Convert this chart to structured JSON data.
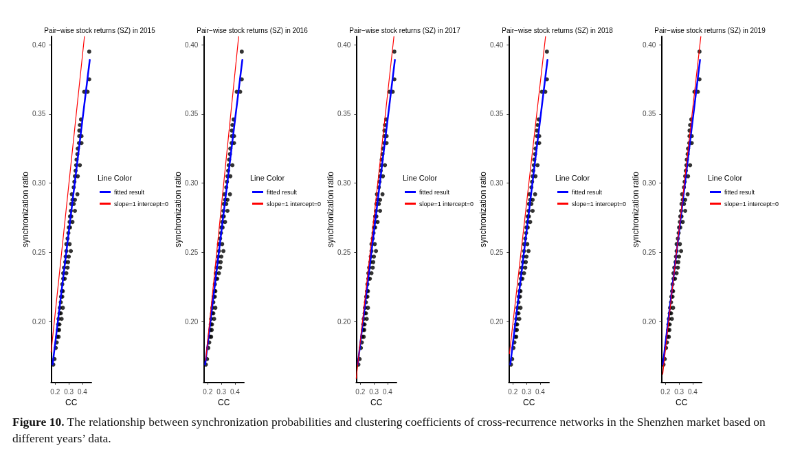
{
  "chart_data": [
    {
      "type": "scatter",
      "title": "Pair−wise stock returns (SZ) in 2015",
      "xlabel": "CC",
      "ylabel": "synchronization ratio",
      "legend_title": "Line Color",
      "legend": "right",
      "grid": false,
      "xlim": [
        0.17,
        0.466
      ],
      "xticks": [
        0.2,
        0.3,
        0.4
      ],
      "ylim": [
        0.156,
        0.406
      ],
      "yticks": [
        {
          "value": 0.2,
          "label": "0.20"
        },
        {
          "value": 0.25,
          "label": "0.25"
        },
        {
          "value": 0.3,
          "label": "0.30"
        },
        {
          "value": 0.35,
          "label": "0.35"
        },
        {
          "value": 0.4,
          "label": "0.40"
        }
      ],
      "annotations": [
        "Figure 10. The relationship between synchronization probabilities and clustering coefficients of cross-recurrence networks in the Shenzhen market based on different years’ data."
      ],
      "series": [
        {
          "type": "scatter",
          "marker": "circle",
          "color": "#000000",
          "x": [
            0.186,
            0.195,
            0.204,
            0.211,
            0.215,
            0.225,
            0.22,
            0.229,
            0.222,
            0.231,
            0.225,
            0.247,
            0.232,
            0.241,
            0.234,
            0.256,
            0.241,
            0.243,
            0.252,
            0.249,
            0.256,
            0.252,
            0.259,
            0.27,
            0.259,
            0.282,
            0.265,
            0.291,
            0.274,
            0.295,
            0.277,
            0.3,
            0.282,
            0.315,
            0.282,
            0.306,
            0.291,
            0.297,
            0.3,
            0.309,
            0.306,
            0.327,
            0.309,
            0.318,
            0.315,
            0.345,
            0.318,
            0.336,
            0.327,
            0.345,
            0.322,
            0.363,
            0.336,
            0.341,
            0.345,
            0.366,
            0.35,
            0.354,
            0.381,
            0.357,
            0.363,
            0.366,
            0.375,
            0.393,
            0.377,
            0.393,
            0.377,
            0.381,
            0.39,
            0.413,
            0.438,
            0.45,
            0.45
          ],
          "values": [
            0.169,
            0.173,
            0.181,
            0.185,
            0.189,
            0.189,
            0.194,
            0.194,
            0.198,
            0.198,
            0.202,
            0.202,
            0.206,
            0.206,
            0.21,
            0.21,
            0.214,
            0.218,
            0.218,
            0.222,
            0.222,
            0.227,
            0.231,
            0.231,
            0.235,
            0.235,
            0.239,
            0.239,
            0.243,
            0.243,
            0.247,
            0.247,
            0.251,
            0.251,
            0.256,
            0.256,
            0.26,
            0.264,
            0.268,
            0.268,
            0.272,
            0.272,
            0.276,
            0.276,
            0.28,
            0.28,
            0.285,
            0.285,
            0.288,
            0.288,
            0.292,
            0.292,
            0.297,
            0.301,
            0.305,
            0.305,
            0.309,
            0.313,
            0.313,
            0.317,
            0.321,
            0.325,
            0.329,
            0.329,
            0.334,
            0.334,
            0.338,
            0.342,
            0.346,
            0.366,
            0.366,
            0.375,
            0.395
          ]
        },
        {
          "type": "line",
          "name": "fitted result",
          "color": "#0000ff",
          "x": [
            0.181,
            0.454
          ],
          "values": [
            0.169,
            0.389
          ]
        },
        {
          "type": "line",
          "name": "slope=1 intercept=0",
          "color": "#ff0000",
          "x": [
            0.17,
            0.415
          ],
          "values": [
            0.178,
            0.406
          ]
        }
      ]
    },
    {
      "type": "scatter",
      "title": "Pair−wise stock returns (SZ) in 2016",
      "xlabel": "CC",
      "ylabel": "synchronization ratio",
      "legend_title": "Line Color",
      "legend": "right",
      "grid": false,
      "xlim": [
        0.17,
        0.466
      ],
      "xticks": [
        0.2,
        0.3,
        0.4
      ],
      "ylim": [
        0.156,
        0.406
      ],
      "yticks": [
        {
          "value": 0.2,
          "label": "0.20"
        },
        {
          "value": 0.25,
          "label": "0.25"
        },
        {
          "value": 0.3,
          "label": "0.30"
        },
        {
          "value": 0.35,
          "label": "0.35"
        },
        {
          "value": 0.4,
          "label": "0.40"
        }
      ],
      "series": [
        {
          "type": "scatter",
          "marker": "circle",
          "color": "#000000",
          "x": [
            0.186,
            0.195,
            0.204,
            0.211,
            0.215,
            0.225,
            0.22,
            0.229,
            0.222,
            0.231,
            0.225,
            0.247,
            0.232,
            0.241,
            0.234,
            0.256,
            0.241,
            0.243,
            0.252,
            0.249,
            0.256,
            0.252,
            0.259,
            0.27,
            0.259,
            0.282,
            0.265,
            0.291,
            0.274,
            0.295,
            0.277,
            0.3,
            0.282,
            0.315,
            0.282,
            0.306,
            0.291,
            0.297,
            0.3,
            0.309,
            0.306,
            0.327,
            0.309,
            0.318,
            0.315,
            0.345,
            0.318,
            0.336,
            0.327,
            0.345,
            0.322,
            0.363,
            0.336,
            0.341,
            0.345,
            0.366,
            0.35,
            0.354,
            0.381,
            0.357,
            0.363,
            0.366,
            0.375,
            0.393,
            0.377,
            0.393,
            0.377,
            0.381,
            0.39,
            0.413,
            0.438,
            0.45,
            0.45
          ],
          "values": [
            0.169,
            0.173,
            0.181,
            0.185,
            0.189,
            0.189,
            0.194,
            0.194,
            0.198,
            0.198,
            0.202,
            0.202,
            0.206,
            0.206,
            0.21,
            0.21,
            0.214,
            0.218,
            0.218,
            0.222,
            0.222,
            0.227,
            0.231,
            0.231,
            0.235,
            0.235,
            0.239,
            0.239,
            0.243,
            0.243,
            0.247,
            0.247,
            0.251,
            0.251,
            0.256,
            0.256,
            0.26,
            0.264,
            0.268,
            0.268,
            0.272,
            0.272,
            0.276,
            0.276,
            0.28,
            0.28,
            0.285,
            0.285,
            0.288,
            0.288,
            0.292,
            0.292,
            0.297,
            0.301,
            0.305,
            0.305,
            0.309,
            0.313,
            0.313,
            0.317,
            0.321,
            0.325,
            0.329,
            0.329,
            0.334,
            0.334,
            0.338,
            0.342,
            0.346,
            0.366,
            0.366,
            0.375,
            0.395
          ]
        },
        {
          "type": "line",
          "name": "fitted result",
          "color": "#0000ff",
          "x": [
            0.181,
            0.454
          ],
          "values": [
            0.169,
            0.389
          ]
        },
        {
          "type": "line",
          "name": "slope=1 intercept=0",
          "color": "#ff0000",
          "x": [
            0.185,
            0.427
          ],
          "values": [
            0.172,
            0.406
          ]
        }
      ]
    },
    {
      "type": "scatter",
      "title": "Pair−wise stock returns (SZ) in 2017",
      "xlabel": "CC",
      "ylabel": "synchronization ratio",
      "legend_title": "Line Color",
      "legend": "right",
      "grid": false,
      "xlim": [
        0.17,
        0.466
      ],
      "xticks": [
        0.2,
        0.3,
        0.4
      ],
      "ylim": [
        0.156,
        0.406
      ],
      "yticks": [
        {
          "value": 0.2,
          "label": "0.20"
        },
        {
          "value": 0.25,
          "label": "0.25"
        },
        {
          "value": 0.3,
          "label": "0.30"
        },
        {
          "value": 0.35,
          "label": "0.35"
        },
        {
          "value": 0.4,
          "label": "0.40"
        }
      ],
      "series": [
        {
          "type": "scatter",
          "marker": "circle",
          "color": "#000000",
          "x": [
            0.186,
            0.195,
            0.204,
            0.211,
            0.215,
            0.225,
            0.22,
            0.229,
            0.222,
            0.231,
            0.225,
            0.247,
            0.232,
            0.241,
            0.234,
            0.256,
            0.241,
            0.243,
            0.252,
            0.249,
            0.256,
            0.252,
            0.259,
            0.27,
            0.259,
            0.282,
            0.265,
            0.291,
            0.274,
            0.295,
            0.277,
            0.3,
            0.282,
            0.315,
            0.282,
            0.306,
            0.291,
            0.297,
            0.3,
            0.309,
            0.306,
            0.327,
            0.309,
            0.318,
            0.315,
            0.345,
            0.318,
            0.336,
            0.327,
            0.345,
            0.322,
            0.363,
            0.336,
            0.341,
            0.345,
            0.366,
            0.35,
            0.354,
            0.381,
            0.357,
            0.363,
            0.366,
            0.375,
            0.393,
            0.377,
            0.393,
            0.377,
            0.381,
            0.39,
            0.413,
            0.438,
            0.45,
            0.45
          ],
          "values": [
            0.169,
            0.173,
            0.181,
            0.185,
            0.189,
            0.189,
            0.194,
            0.194,
            0.198,
            0.198,
            0.202,
            0.202,
            0.206,
            0.206,
            0.21,
            0.21,
            0.214,
            0.218,
            0.218,
            0.222,
            0.222,
            0.227,
            0.231,
            0.231,
            0.235,
            0.235,
            0.239,
            0.239,
            0.243,
            0.243,
            0.247,
            0.247,
            0.251,
            0.251,
            0.256,
            0.256,
            0.26,
            0.264,
            0.268,
            0.268,
            0.272,
            0.272,
            0.276,
            0.276,
            0.28,
            0.28,
            0.285,
            0.285,
            0.288,
            0.288,
            0.292,
            0.292,
            0.297,
            0.301,
            0.305,
            0.305,
            0.309,
            0.313,
            0.313,
            0.317,
            0.321,
            0.325,
            0.329,
            0.329,
            0.334,
            0.334,
            0.338,
            0.342,
            0.346,
            0.366,
            0.366,
            0.375,
            0.395
          ]
        },
        {
          "type": "line",
          "name": "fitted result",
          "color": "#0000ff",
          "x": [
            0.181,
            0.454
          ],
          "values": [
            0.169,
            0.389
          ]
        },
        {
          "type": "line",
          "name": "slope=1 intercept=0",
          "color": "#ff0000",
          "x": [
            0.17,
            0.447
          ],
          "values": [
            0.159,
            0.406
          ]
        }
      ]
    },
    {
      "type": "scatter",
      "title": "Pair−wise stock returns (SZ) in 2018",
      "xlabel": "CC",
      "ylabel": "synchronization ratio",
      "legend_title": "Line Color",
      "legend": "right",
      "grid": false,
      "xlim": [
        0.17,
        0.466
      ],
      "xticks": [
        0.2,
        0.3,
        0.4
      ],
      "ylim": [
        0.156,
        0.406
      ],
      "yticks": [
        {
          "value": 0.2,
          "label": "0.20"
        },
        {
          "value": 0.25,
          "label": "0.25"
        },
        {
          "value": 0.3,
          "label": "0.30"
        },
        {
          "value": 0.35,
          "label": "0.35"
        },
        {
          "value": 0.4,
          "label": "0.40"
        }
      ],
      "series": [
        {
          "type": "scatter",
          "marker": "circle",
          "color": "#000000",
          "x": [
            0.186,
            0.195,
            0.204,
            0.211,
            0.215,
            0.225,
            0.22,
            0.229,
            0.222,
            0.231,
            0.225,
            0.247,
            0.232,
            0.241,
            0.234,
            0.256,
            0.241,
            0.243,
            0.252,
            0.249,
            0.256,
            0.252,
            0.259,
            0.27,
            0.259,
            0.282,
            0.265,
            0.291,
            0.274,
            0.295,
            0.277,
            0.3,
            0.282,
            0.315,
            0.282,
            0.306,
            0.291,
            0.297,
            0.3,
            0.309,
            0.306,
            0.327,
            0.309,
            0.318,
            0.315,
            0.345,
            0.318,
            0.336,
            0.327,
            0.345,
            0.322,
            0.363,
            0.336,
            0.341,
            0.345,
            0.366,
            0.35,
            0.354,
            0.381,
            0.357,
            0.363,
            0.366,
            0.375,
            0.393,
            0.377,
            0.393,
            0.377,
            0.381,
            0.39,
            0.413,
            0.438,
            0.45,
            0.45
          ],
          "values": [
            0.169,
            0.173,
            0.181,
            0.185,
            0.189,
            0.189,
            0.194,
            0.194,
            0.198,
            0.198,
            0.202,
            0.202,
            0.206,
            0.206,
            0.21,
            0.21,
            0.214,
            0.218,
            0.218,
            0.222,
            0.222,
            0.227,
            0.231,
            0.231,
            0.235,
            0.235,
            0.239,
            0.239,
            0.243,
            0.243,
            0.247,
            0.247,
            0.251,
            0.251,
            0.256,
            0.256,
            0.26,
            0.264,
            0.268,
            0.268,
            0.272,
            0.272,
            0.276,
            0.276,
            0.28,
            0.28,
            0.285,
            0.285,
            0.288,
            0.288,
            0.292,
            0.292,
            0.297,
            0.301,
            0.305,
            0.305,
            0.309,
            0.313,
            0.313,
            0.317,
            0.321,
            0.325,
            0.329,
            0.329,
            0.334,
            0.334,
            0.338,
            0.342,
            0.346,
            0.366,
            0.366,
            0.375,
            0.395
          ]
        },
        {
          "type": "line",
          "name": "fitted result",
          "color": "#0000ff",
          "x": [
            0.181,
            0.454
          ],
          "values": [
            0.169,
            0.389
          ]
        },
        {
          "type": "line",
          "name": "slope=1 intercept=0",
          "color": "#ff0000",
          "x": [
            0.175,
            0.44
          ],
          "values": [
            0.177,
            0.406
          ]
        }
      ]
    },
    {
      "type": "scatter",
      "title": "Pair−wise stock returns (SZ) in 2019",
      "xlabel": "CC",
      "ylabel": "synchronization ratio",
      "legend_title": "Line Color",
      "legend": "right",
      "grid": false,
      "xlim": [
        0.17,
        0.466
      ],
      "xticks": [
        0.2,
        0.3,
        0.4
      ],
      "ylim": [
        0.156,
        0.406
      ],
      "yticks": [
        {
          "value": 0.2,
          "label": "0.20"
        },
        {
          "value": 0.25,
          "label": "0.25"
        },
        {
          "value": 0.3,
          "label": "0.30"
        },
        {
          "value": 0.35,
          "label": "0.35"
        },
        {
          "value": 0.4,
          "label": "0.40"
        }
      ],
      "series": [
        {
          "type": "scatter",
          "marker": "circle",
          "color": "#000000",
          "x": [
            0.186,
            0.195,
            0.204,
            0.211,
            0.215,
            0.225,
            0.22,
            0.229,
            0.222,
            0.231,
            0.225,
            0.247,
            0.232,
            0.241,
            0.234,
            0.256,
            0.241,
            0.243,
            0.252,
            0.249,
            0.256,
            0.252,
            0.259,
            0.27,
            0.259,
            0.282,
            0.265,
            0.291,
            0.274,
            0.295,
            0.277,
            0.3,
            0.282,
            0.315,
            0.282,
            0.306,
            0.291,
            0.297,
            0.3,
            0.309,
            0.306,
            0.327,
            0.309,
            0.318,
            0.315,
            0.345,
            0.318,
            0.336,
            0.327,
            0.345,
            0.322,
            0.363,
            0.336,
            0.341,
            0.345,
            0.366,
            0.35,
            0.354,
            0.381,
            0.357,
            0.363,
            0.366,
            0.375,
            0.393,
            0.377,
            0.393,
            0.377,
            0.381,
            0.39,
            0.413,
            0.438,
            0.45,
            0.45
          ],
          "values": [
            0.169,
            0.173,
            0.181,
            0.185,
            0.189,
            0.189,
            0.194,
            0.194,
            0.198,
            0.198,
            0.202,
            0.202,
            0.206,
            0.206,
            0.21,
            0.21,
            0.214,
            0.218,
            0.218,
            0.222,
            0.222,
            0.227,
            0.231,
            0.231,
            0.235,
            0.235,
            0.239,
            0.239,
            0.243,
            0.243,
            0.247,
            0.247,
            0.251,
            0.251,
            0.256,
            0.256,
            0.26,
            0.264,
            0.268,
            0.268,
            0.272,
            0.272,
            0.276,
            0.276,
            0.28,
            0.28,
            0.285,
            0.285,
            0.288,
            0.288,
            0.292,
            0.292,
            0.297,
            0.301,
            0.305,
            0.305,
            0.309,
            0.313,
            0.313,
            0.317,
            0.321,
            0.325,
            0.329,
            0.329,
            0.334,
            0.334,
            0.338,
            0.342,
            0.346,
            0.366,
            0.366,
            0.375,
            0.395
          ]
        },
        {
          "type": "line",
          "name": "fitted result",
          "color": "#0000ff",
          "x": [
            0.181,
            0.454
          ],
          "values": [
            0.169,
            0.389
          ]
        },
        {
          "type": "line",
          "name": "slope=1 intercept=0",
          "color": "#ff0000",
          "x": [
            0.18,
            0.46
          ],
          "values": [
            0.162,
            0.406
          ]
        }
      ]
    }
  ]
}
